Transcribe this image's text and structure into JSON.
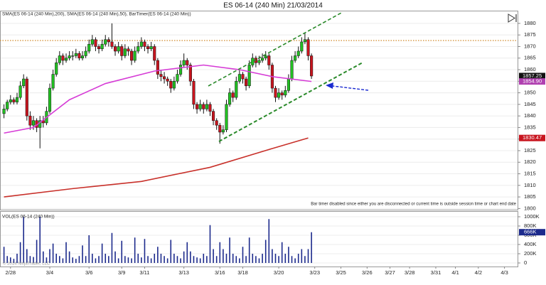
{
  "chart_data": {
    "type": "candlestick",
    "title": "ES 06-14 (240 Min)  21/03/2014",
    "indicator_label": "SMA(ES 06-14 (240 Min),200), SMA(ES 06-14 (240 Min),50), BarTimer(ES 06-14 (240 Min))",
    "message": "Bar timer disabled since either you are disconnected or current time is outside session time or chart end date",
    "copyright": "© 2014 NinjaTrader, LLC",
    "xlim": [
      -1,
      157
    ],
    "xticks": [
      {
        "value": 2,
        "label": "2/28"
      },
      {
        "value": 14,
        "label": "3/4"
      },
      {
        "value": 26,
        "label": "3/6"
      },
      {
        "value": 36,
        "label": "3/9"
      },
      {
        "value": 43,
        "label": "3/11"
      },
      {
        "value": 55,
        "label": "3/13"
      },
      {
        "value": 66,
        "label": "3/16"
      },
      {
        "value": 73,
        "label": "3/18"
      },
      {
        "value": 84,
        "label": "3/20"
      },
      {
        "value": 95,
        "label": "3/23"
      },
      {
        "value": 103,
        "label": "3/25"
      },
      {
        "value": 111,
        "label": "3/26"
      },
      {
        "value": 118,
        "label": "3/27"
      },
      {
        "value": 124,
        "label": "3/28"
      },
      {
        "value": 132,
        "label": "3/31"
      },
      {
        "value": 138,
        "label": "4/1"
      },
      {
        "value": 145,
        "label": "4/2"
      },
      {
        "value": 153,
        "label": "4/3"
      }
    ],
    "ylim": [
      1799.5,
      1885.5
    ],
    "yticks": [
      1800,
      1805,
      1810,
      1815,
      1820,
      1825,
      1830,
      1835,
      1840,
      1845,
      1850,
      1855,
      1860,
      1865,
      1870,
      1875,
      1880
    ],
    "grid": true,
    "up_color": "#22c022",
    "down_color": "#c8141e",
    "ohlc": [
      [
        1841,
        1845,
        1839,
        1843
      ],
      [
        1843,
        1847,
        1842,
        1846
      ],
      [
        1846,
        1849,
        1845,
        1847
      ],
      [
        1847,
        1848,
        1845,
        1846
      ],
      [
        1846,
        1850,
        1845,
        1848
      ],
      [
        1848,
        1855,
        1847,
        1853
      ],
      [
        1853,
        1858,
        1852,
        1856
      ],
      [
        1856,
        1857,
        1838,
        1840
      ],
      [
        1840,
        1842,
        1834,
        1836
      ],
      [
        1836,
        1840,
        1834,
        1838
      ],
      [
        1838,
        1839,
        1833,
        1835
      ],
      [
        1835,
        1840,
        1826,
        1838
      ],
      [
        1838,
        1840,
        1835,
        1837
      ],
      [
        1837,
        1844,
        1836,
        1842
      ],
      [
        1842,
        1854,
        1841,
        1852
      ],
      [
        1852,
        1860,
        1851,
        1858
      ],
      [
        1858,
        1865,
        1857,
        1863
      ],
      [
        1863,
        1868,
        1862,
        1866
      ],
      [
        1866,
        1867,
        1862,
        1864
      ],
      [
        1864,
        1867,
        1863,
        1865
      ],
      [
        1865,
        1868,
        1864,
        1866
      ],
      [
        1866,
        1868,
        1864,
        1866
      ],
      [
        1866,
        1869,
        1865,
        1867
      ],
      [
        1867,
        1868,
        1864,
        1865
      ],
      [
        1865,
        1868,
        1864,
        1866
      ],
      [
        1866,
        1870,
        1865,
        1868
      ],
      [
        1868,
        1873,
        1867,
        1871
      ],
      [
        1871,
        1875,
        1870,
        1873
      ],
      [
        1873,
        1874,
        1868,
        1870
      ],
      [
        1870,
        1871,
        1867,
        1869
      ],
      [
        1869,
        1873,
        1868,
        1871
      ],
      [
        1871,
        1875,
        1870,
        1873
      ],
      [
        1873,
        1874,
        1870,
        1872
      ],
      [
        1872,
        1880,
        1869,
        1870
      ],
      [
        1870,
        1871,
        1866,
        1868
      ],
      [
        1868,
        1872,
        1867,
        1870
      ],
      [
        1870,
        1871,
        1864,
        1866
      ],
      [
        1866,
        1871,
        1865,
        1869
      ],
      [
        1869,
        1870,
        1866,
        1868
      ],
      [
        1868,
        1869,
        1862,
        1864
      ],
      [
        1864,
        1870,
        1863,
        1868
      ],
      [
        1868,
        1872,
        1867,
        1870
      ],
      [
        1870,
        1874,
        1869,
        1872
      ],
      [
        1872,
        1873,
        1868,
        1870
      ],
      [
        1870,
        1871,
        1867,
        1869
      ],
      [
        1869,
        1872,
        1868,
        1870
      ],
      [
        1870,
        1871,
        1862,
        1864
      ],
      [
        1864,
        1865,
        1856,
        1858
      ],
      [
        1858,
        1860,
        1855,
        1857
      ],
      [
        1857,
        1859,
        1854,
        1856
      ],
      [
        1856,
        1857,
        1853,
        1855
      ],
      [
        1855,
        1856,
        1850,
        1852
      ],
      [
        1852,
        1857,
        1851,
        1855
      ],
      [
        1855,
        1860,
        1854,
        1858
      ],
      [
        1858,
        1864,
        1857,
        1862
      ],
      [
        1862,
        1867,
        1861,
        1864
      ],
      [
        1864,
        1865,
        1860,
        1862
      ],
      [
        1862,
        1863,
        1853,
        1855
      ],
      [
        1855,
        1856,
        1843,
        1845
      ],
      [
        1845,
        1846,
        1841,
        1843
      ],
      [
        1843,
        1847,
        1842,
        1845
      ],
      [
        1845,
        1846,
        1841,
        1843
      ],
      [
        1843,
        1847,
        1842,
        1845
      ],
      [
        1845,
        1846,
        1840,
        1842
      ],
      [
        1842,
        1843,
        1836,
        1838
      ],
      [
        1838,
        1839,
        1834,
        1836
      ],
      [
        1836,
        1837,
        1828,
        1833
      ],
      [
        1833,
        1836,
        1832,
        1834
      ],
      [
        1834,
        1847,
        1833,
        1845
      ],
      [
        1845,
        1852,
        1844,
        1850
      ],
      [
        1850,
        1851,
        1846,
        1848
      ],
      [
        1848,
        1857,
        1847,
        1855
      ],
      [
        1855,
        1860,
        1854,
        1858
      ],
      [
        1858,
        1859,
        1854,
        1856
      ],
      [
        1856,
        1857,
        1851,
        1853
      ],
      [
        1853,
        1864,
        1852,
        1862
      ],
      [
        1862,
        1867,
        1861,
        1865
      ],
      [
        1865,
        1866,
        1861,
        1863
      ],
      [
        1863,
        1866,
        1862,
        1864
      ],
      [
        1864,
        1867,
        1863,
        1865
      ],
      [
        1865,
        1868,
        1864,
        1866
      ],
      [
        1866,
        1867,
        1860,
        1862
      ],
      [
        1862,
        1863,
        1850,
        1852
      ],
      [
        1852,
        1853,
        1846,
        1848
      ],
      [
        1848,
        1852,
        1847,
        1850
      ],
      [
        1850,
        1851,
        1847,
        1849
      ],
      [
        1849,
        1853,
        1848,
        1851
      ],
      [
        1851,
        1858,
        1850,
        1856
      ],
      [
        1856,
        1866,
        1855,
        1864
      ],
      [
        1864,
        1868,
        1863,
        1866
      ],
      [
        1866,
        1870,
        1865,
        1868
      ],
      [
        1868,
        1874,
        1867,
        1872
      ],
      [
        1872,
        1876,
        1871,
        1873
      ],
      [
        1873,
        1874,
        1864,
        1866
      ],
      [
        1866,
        1867,
        1856,
        1857.25
      ]
    ],
    "lines": [
      {
        "color": "#d63cd6",
        "x": [
          0,
          9,
          20,
          31,
          46,
          61,
          72,
          82,
          94
        ],
        "values": [
          1832.6,
          1835,
          1847,
          1854,
          1859.4,
          1862,
          1860,
          1857,
          1854.9
        ]
      },
      {
        "color": "#c8302a",
        "x": [
          0,
          21,
          42,
          63,
          81,
          93
        ],
        "values": [
          1805,
          1808.6,
          1811.7,
          1817.8,
          1825.5,
          1830.47
        ]
      }
    ],
    "price_markers": [
      {
        "value": 1857.25,
        "color": "#111111"
      },
      {
        "value": 1854.9,
        "label": "1854.90",
        "color": "#b040b0"
      },
      {
        "value": 1830.47,
        "color": "#c8141e"
      }
    ],
    "volume": {
      "label": "VOL(ES 06-14 (240 Min))",
      "color": "#1c2a8c",
      "ylim": [
        -77000,
        1107700
      ],
      "yticks": [
        {
          "value": 0,
          "label": "0"
        },
        {
          "value": 200000,
          "label": "200K"
        },
        {
          "value": 400000,
          "label": "400K"
        },
        {
          "value": 600000,
          "label": "600K"
        },
        {
          "value": 800000,
          "label": "800K"
        },
        {
          "value": 1000000,
          "label": "1000K"
        }
      ],
      "marker": {
        "value": 666000,
        "label": "666K",
        "color": "#1c2a8c"
      },
      "values": [
        350000,
        150000,
        120000,
        90000,
        200000,
        450000,
        1000000,
        300000,
        150000,
        130000,
        500000,
        1000000,
        250000,
        120000,
        300000,
        420000,
        200000,
        150000,
        100000,
        450000,
        250000,
        120000,
        90000,
        150000,
        380000,
        150000,
        600000,
        200000,
        100000,
        150000,
        420000,
        200000,
        150000,
        650000,
        250000,
        100000,
        480000,
        150000,
        120000,
        100000,
        550000,
        200000,
        120000,
        520000,
        150000,
        100000,
        200000,
        350000,
        200000,
        150000,
        100000,
        500000,
        200000,
        150000,
        100000,
        250000,
        450000,
        250000,
        150000,
        120000,
        100000,
        200000,
        150000,
        820000,
        300000,
        150000,
        450000,
        300000,
        200000,
        550000,
        200000,
        150000,
        100000,
        350000,
        150000,
        550000,
        200000,
        150000,
        100000,
        200000,
        500000,
        950000,
        300000,
        200000,
        150000,
        450000,
        200000,
        350000,
        150000,
        100000,
        200000,
        300000,
        150000,
        300000,
        666000
      ]
    }
  }
}
